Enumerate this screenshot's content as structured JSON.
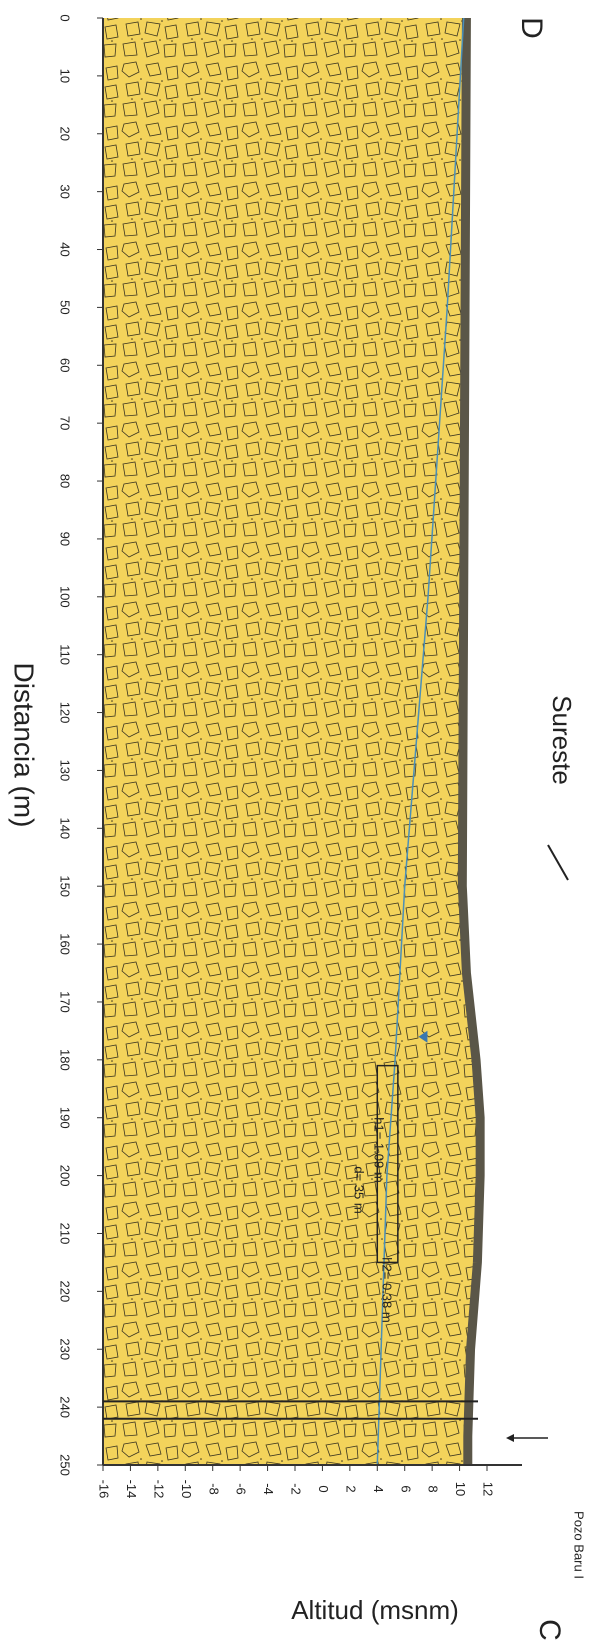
{
  "chart_data": {
    "type": "line",
    "x_label": "Distancia (m)",
    "y_label": "Altitud (msnm)",
    "xlim": [
      0,
      250
    ],
    "xticks": [
      0,
      10,
      20,
      30,
      40,
      50,
      60,
      70,
      80,
      90,
      100,
      110,
      120,
      130,
      140,
      150,
      160,
      170,
      180,
      190,
      200,
      210,
      220,
      230,
      240,
      250
    ],
    "ylim": [
      -16,
      12
    ],
    "yticks": [
      -16,
      -14,
      -12,
      -10,
      -8,
      -6,
      -4,
      -2,
      0,
      2,
      4,
      6,
      8,
      10,
      12
    ],
    "series": [
      {
        "color": "#5a5648",
        "x": [
          0,
          50,
          100,
          150,
          165,
          180,
          190,
          200,
          215,
          230,
          245,
          250
        ],
        "values": [
          10.5,
          10.4,
          10.3,
          10.2,
          10.5,
          11.2,
          11.5,
          11.5,
          11.3,
          10.8,
          10.6,
          10.6
        ]
      },
      {
        "color": "#4a8fb8",
        "x": [
          0,
          50,
          100,
          150,
          180,
          200,
          250
        ],
        "values": [
          10.3,
          9.1,
          7.7,
          6.0,
          5.3,
          4.7,
          4.0
        ]
      }
    ],
    "annotations": [
      "D",
      "Sureste",
      "Pozo Baru I",
      "C",
      "h1= 1.09 m",
      "d= 35 m",
      "h2= 0.38 m"
    ]
  }
}
